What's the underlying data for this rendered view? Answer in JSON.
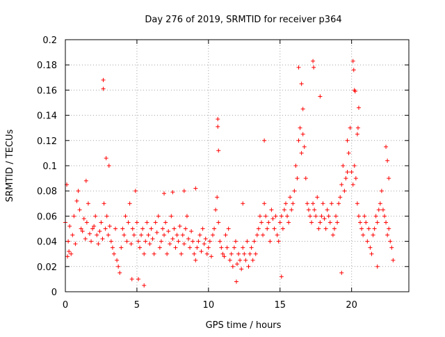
{
  "chart_data": {
    "type": "scatter",
    "title": "Day 276 of 2019, SRMTID for receiver p364",
    "xlabel": "GPS time / hours",
    "ylabel": "SRMTID / TECUs",
    "xlim": [
      0,
      24
    ],
    "ylim": [
      0,
      0.2
    ],
    "xticks": [
      0,
      5,
      10,
      15,
      20
    ],
    "xtick_labels": [
      "0",
      "5",
      "10",
      "15",
      "20"
    ],
    "yticks": [
      0,
      0.02,
      0.04,
      0.06,
      0.08,
      0.1,
      0.12,
      0.14,
      0.16,
      0.18,
      0.2
    ],
    "ytick_labels": [
      "0",
      "0.02",
      "0.04",
      "0.06",
      "0.08",
      "0.1",
      "0.12",
      "0.14",
      "0.16",
      "0.18",
      "0.2"
    ],
    "grid": true,
    "marker": "+",
    "color": "#ff0000",
    "series": [
      {
        "name": "SRMTID",
        "x": [
          0.0,
          0.1,
          0.2,
          0.3,
          0.4,
          0.5,
          0.6,
          0.7,
          0.8,
          0.9,
          1.0,
          1.1,
          1.2,
          1.3,
          1.4,
          1.5,
          1.6,
          1.7,
          1.8,
          1.9,
          2.0,
          2.1,
          2.2,
          2.3,
          2.4,
          2.5,
          2.6,
          2.7,
          2.8,
          2.9,
          3.0,
          3.1,
          3.2,
          3.3,
          3.4,
          3.5,
          3.6,
          3.7,
          3.8,
          3.9,
          4.0,
          4.1,
          4.2,
          4.3,
          4.4,
          4.5,
          4.6,
          4.7,
          4.8,
          4.9,
          5.0,
          5.1,
          5.2,
          5.3,
          5.4,
          5.5,
          5.6,
          5.7,
          5.8,
          5.9,
          6.0,
          6.1,
          6.2,
          6.3,
          6.4,
          6.5,
          6.6,
          6.7,
          6.8,
          6.9,
          7.0,
          7.1,
          7.2,
          7.3,
          7.4,
          7.5,
          7.6,
          7.7,
          7.8,
          7.9,
          8.0,
          8.1,
          8.2,
          8.3,
          8.4,
          8.5,
          8.6,
          8.7,
          8.8,
          8.9,
          9.0,
          9.1,
          9.2,
          9.3,
          9.4,
          9.5,
          9.6,
          9.7,
          9.8,
          9.9,
          10.0,
          10.1,
          10.2,
          10.3,
          10.4,
          10.5,
          10.6,
          10.7,
          10.8,
          10.9,
          11.0,
          11.1,
          11.2,
          11.3,
          11.4,
          11.5,
          11.6,
          11.7,
          11.8,
          11.9,
          12.0,
          12.1,
          12.2,
          12.3,
          12.4,
          12.5,
          12.6,
          12.7,
          12.8,
          12.9,
          13.0,
          13.1,
          13.2,
          13.3,
          13.4,
          13.5,
          13.6,
          13.7,
          13.8,
          13.9,
          14.0,
          14.1,
          14.2,
          14.3,
          14.4,
          14.5,
          14.6,
          14.7,
          14.8,
          14.9,
          15.0,
          15.1,
          15.2,
          15.3,
          15.4,
          15.5,
          15.6,
          15.7,
          15.8,
          15.9,
          16.0,
          16.1,
          16.2,
          16.3,
          16.4,
          16.5,
          16.6,
          16.7,
          16.8,
          16.9,
          17.0,
          17.1,
          17.2,
          17.3,
          17.4,
          17.5,
          17.6,
          17.7,
          17.8,
          17.9,
          18.0,
          18.1,
          18.2,
          18.3,
          18.4,
          18.5,
          18.6,
          18.7,
          18.8,
          18.9,
          19.0,
          19.1,
          19.2,
          19.3,
          19.4,
          19.5,
          19.6,
          19.7,
          19.8,
          19.9,
          20.0,
          20.1,
          20.2,
          20.3,
          20.4,
          20.5,
          20.6,
          20.7,
          20.8,
          20.9,
          21.0,
          21.1,
          21.2,
          21.3,
          21.4,
          21.5,
          21.6,
          21.7,
          21.8,
          21.9,
          22.0,
          22.1,
          22.2,
          22.3,
          22.4,
          22.5,
          22.6,
          22.7,
          22.8,
          22.9,
          2.65,
          2.65,
          10.65,
          10.65,
          10.7,
          13.9,
          16.3,
          16.5,
          16.6,
          17.3,
          17.35,
          20.1,
          20.15,
          20.2,
          20.25,
          20.5,
          20.45,
          20.4,
          22.4,
          22.5,
          22.6,
          5.1,
          5.5,
          2.85,
          3.05,
          8.3,
          9.1,
          12.4,
          19.3,
          21.8,
          0.15,
          0.25,
          1.45,
          4.65,
          6.9,
          7.5,
          11.95,
          15.1,
          17.8,
          19.7
        ],
        "y": [
          0.055,
          0.085,
          0.04,
          0.052,
          0.03,
          0.045,
          0.06,
          0.038,
          0.072,
          0.08,
          0.065,
          0.05,
          0.048,
          0.058,
          0.042,
          0.055,
          0.07,
          0.046,
          0.04,
          0.05,
          0.052,
          0.06,
          0.045,
          0.038,
          0.048,
          0.055,
          0.042,
          0.07,
          0.05,
          0.06,
          0.045,
          0.052,
          0.04,
          0.035,
          0.03,
          0.05,
          0.025,
          0.02,
          0.015,
          0.035,
          0.05,
          0.045,
          0.06,
          0.04,
          0.055,
          0.07,
          0.038,
          0.05,
          0.045,
          0.08,
          0.055,
          0.04,
          0.035,
          0.045,
          0.05,
          0.03,
          0.04,
          0.055,
          0.045,
          0.038,
          0.05,
          0.042,
          0.03,
          0.055,
          0.047,
          0.06,
          0.035,
          0.04,
          0.05,
          0.045,
          0.055,
          0.03,
          0.048,
          0.038,
          0.06,
          0.042,
          0.05,
          0.035,
          0.045,
          0.04,
          0.052,
          0.03,
          0.045,
          0.038,
          0.05,
          0.06,
          0.042,
          0.035,
          0.048,
          0.04,
          0.03,
          0.025,
          0.035,
          0.04,
          0.045,
          0.032,
          0.05,
          0.038,
          0.042,
          0.03,
          0.035,
          0.04,
          0.028,
          0.045,
          0.05,
          0.065,
          0.075,
          0.055,
          0.04,
          0.035,
          0.03,
          0.028,
          0.045,
          0.035,
          0.05,
          0.025,
          0.03,
          0.02,
          0.035,
          0.04,
          0.022,
          0.03,
          0.025,
          0.018,
          0.035,
          0.03,
          0.025,
          0.04,
          0.02,
          0.03,
          0.035,
          0.025,
          0.04,
          0.03,
          0.045,
          0.05,
          0.06,
          0.055,
          0.045,
          0.07,
          0.06,
          0.05,
          0.055,
          0.04,
          0.065,
          0.058,
          0.05,
          0.06,
          0.045,
          0.04,
          0.055,
          0.06,
          0.05,
          0.065,
          0.07,
          0.06,
          0.055,
          0.075,
          0.065,
          0.07,
          0.08,
          0.1,
          0.09,
          0.12,
          0.13,
          0.11,
          0.125,
          0.115,
          0.09,
          0.07,
          0.065,
          0.06,
          0.055,
          0.07,
          0.065,
          0.06,
          0.075,
          0.05,
          0.055,
          0.06,
          0.07,
          0.058,
          0.05,
          0.065,
          0.06,
          0.055,
          0.07,
          0.045,
          0.05,
          0.06,
          0.055,
          0.07,
          0.075,
          0.085,
          0.1,
          0.08,
          0.09,
          0.12,
          0.11,
          0.13,
          0.095,
          0.085,
          0.1,
          0.09,
          0.07,
          0.06,
          0.055,
          0.05,
          0.045,
          0.06,
          0.055,
          0.04,
          0.05,
          0.035,
          0.03,
          0.045,
          0.05,
          0.06,
          0.055,
          0.065,
          0.07,
          0.08,
          0.065,
          0.06,
          0.055,
          0.045,
          0.05,
          0.04,
          0.035,
          0.025,
          0.168,
          0.161,
          0.137,
          0.131,
          0.112,
          0.12,
          0.178,
          0.165,
          0.145,
          0.183,
          0.178,
          0.183,
          0.176,
          0.16,
          0.159,
          0.146,
          0.13,
          0.125,
          0.115,
          0.104,
          0.09,
          0.01,
          0.005,
          0.106,
          0.1,
          0.08,
          0.082,
          0.07,
          0.015,
          0.02,
          0.028,
          0.032,
          0.088,
          0.01,
          0.078,
          0.079,
          0.008,
          0.012,
          0.155,
          0.095
        ]
      }
    ]
  }
}
